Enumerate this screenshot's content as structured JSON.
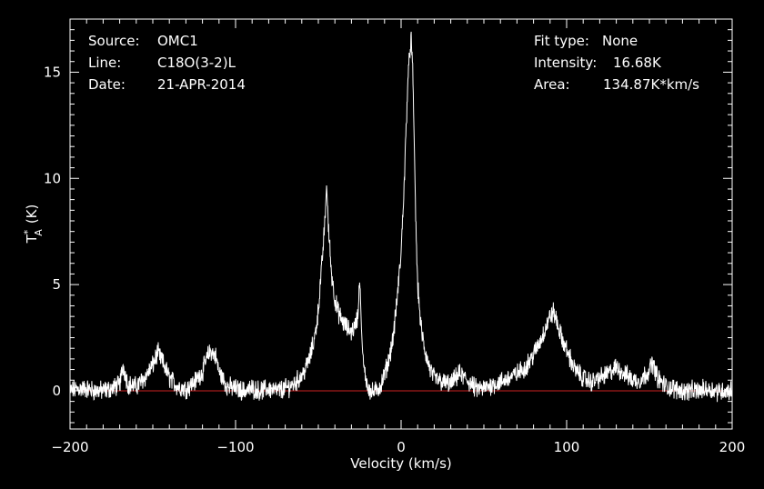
{
  "chart_data": {
    "type": "line",
    "xlabel": "Velocity (km/s)",
    "ylabel_main": "T",
    "ylabel_sub": "A",
    "ylabel_sup": "*",
    "ylabel_unit": "(K)",
    "xlim": [
      -200,
      200
    ],
    "ylim": [
      -1.8,
      17.5
    ],
    "xticks": [
      -200,
      -100,
      0,
      100,
      200
    ],
    "yticks": [
      0,
      5,
      10,
      15
    ],
    "baseline": 0,
    "colors": {
      "background": "#000000",
      "line": "#ffffff",
      "baseline": "#cc2222",
      "axes": "#ffffff"
    },
    "info_left": [
      {
        "key": "Source:",
        "value": "OMC1"
      },
      {
        "key": "Line:",
        "value": "C18O(3-2)L"
      },
      {
        "key": "Date:",
        "value": "21-APR-2014"
      }
    ],
    "info_right": [
      {
        "key": "Fit type:",
        "value": "None"
      },
      {
        "key": "Intensity:",
        "value": "16.68K"
      },
      {
        "key": "Area:",
        "value": "134.87K*km/s"
      }
    ],
    "series": [
      {
        "x": [
          -200,
          -195,
          -190,
          -185,
          -180,
          -175,
          -170,
          -168,
          -165,
          -160,
          -155,
          -150,
          -147,
          -145,
          -142,
          -140,
          -135,
          -130,
          -125,
          -120,
          -117,
          -115,
          -112,
          -110,
          -105,
          -100,
          -95,
          -90,
          -85,
          -80,
          -75,
          -70,
          -65,
          -60,
          -58,
          -55,
          -52,
          -50,
          -48,
          -46,
          -45,
          -44,
          -42,
          -40,
          -38,
          -35,
          -32,
          -30,
          -28,
          -26,
          -25,
          -24,
          -23,
          -22,
          -20,
          -18,
          -15,
          -12,
          -10,
          -8,
          -5,
          -3,
          0,
          2,
          4,
          6,
          7,
          8,
          9,
          10,
          12,
          14,
          16,
          18,
          20,
          25,
          30,
          35,
          40,
          45,
          50,
          55,
          60,
          65,
          70,
          75,
          80,
          85,
          88,
          90,
          92,
          94,
          96,
          100,
          105,
          110,
          115,
          120,
          125,
          130,
          135,
          140,
          145,
          150,
          152,
          155,
          160,
          165,
          170,
          175,
          180,
          185,
          190,
          195,
          200
        ],
        "y": [
          0.0,
          0.1,
          0.1,
          0.0,
          0.0,
          0.1,
          0.3,
          1.2,
          0.3,
          0.2,
          0.6,
          1.2,
          1.8,
          1.5,
          1.0,
          0.6,
          0.2,
          0.1,
          0.4,
          0.9,
          1.6,
          1.9,
          1.6,
          0.9,
          0.2,
          0.1,
          0.0,
          0.1,
          0.0,
          0.1,
          0.0,
          0.1,
          0.3,
          0.7,
          1.0,
          1.6,
          2.6,
          3.8,
          5.8,
          8.0,
          9.7,
          7.8,
          5.5,
          4.3,
          3.7,
          3.2,
          2.9,
          2.8,
          3.0,
          3.6,
          5.5,
          3.0,
          1.4,
          0.8,
          0.2,
          -0.1,
          0.0,
          0.3,
          0.8,
          1.3,
          2.4,
          3.8,
          6.5,
          10.0,
          14.5,
          16.68,
          15.0,
          11.5,
          7.5,
          5.0,
          3.0,
          2.0,
          1.4,
          0.9,
          0.6,
          0.4,
          0.3,
          0.8,
          0.5,
          0.1,
          0.1,
          0.3,
          0.4,
          0.6,
          0.8,
          1.1,
          1.7,
          2.5,
          3.1,
          3.5,
          3.7,
          3.3,
          2.7,
          1.9,
          1.0,
          0.6,
          0.4,
          0.6,
          0.8,
          1.1,
          0.8,
          0.5,
          0.5,
          1.0,
          1.3,
          0.6,
          0.2,
          0.1,
          0.0,
          0.0,
          0.0,
          0.1,
          0.0,
          0.0,
          0.0
        ]
      }
    ]
  }
}
